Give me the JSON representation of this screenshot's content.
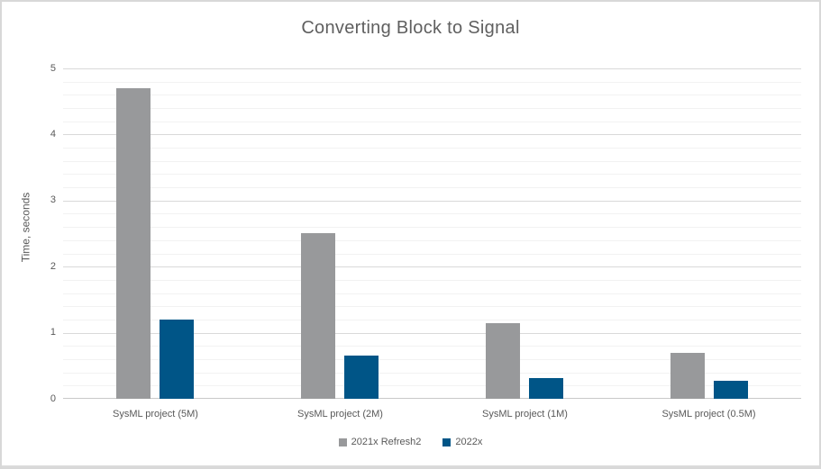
{
  "chart_data": {
    "type": "bar",
    "title": "Converting Block to Signal",
    "xlabel": "",
    "ylabel": "Time, seconds",
    "categories": [
      "SysML project (5M)",
      "SysML project (2M)",
      "SysML project (1M)",
      "SysML project (0.5M)"
    ],
    "series": [
      {
        "name": "2021x Refresh2",
        "color": "#98999b",
        "values": [
          4.7,
          2.5,
          1.15,
          0.7
        ]
      },
      {
        "name": "2022x",
        "color": "#005587",
        "values": [
          1.2,
          0.65,
          0.31,
          0.27
        ]
      }
    ],
    "ylim": [
      0,
      5
    ],
    "y_tick_labels": [
      "0",
      "1",
      "2",
      "3",
      "4",
      "5"
    ],
    "y_major_step": 1,
    "y_minor_step": 0.2,
    "grid": "horizontal major + minor",
    "legend_position": "bottom"
  },
  "colors": {
    "background": "#ffffff",
    "frame_border": "#d8d8d8",
    "bottom_strip": "#dbdbdb",
    "major_gridline": "#d9d9d9",
    "minor_gridline": "#f2f2f2",
    "axis_line": "#c9c9c9",
    "text": "#595959",
    "title_text": "#5f5f5f"
  }
}
